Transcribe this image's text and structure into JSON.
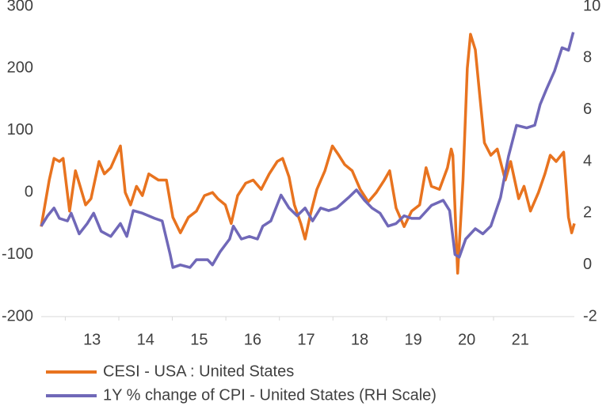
{
  "chart_data": {
    "type": "line",
    "series": [
      {
        "name": "CESI - USA : United States",
        "color": "#e8731f",
        "axis": "y",
        "x": [
          12.55,
          12.62,
          12.7,
          12.79,
          12.89,
          12.96,
          13.08,
          13.19,
          13.26,
          13.38,
          13.48,
          13.63,
          13.73,
          13.85,
          14.03,
          14.12,
          14.22,
          14.33,
          14.44,
          14.56,
          14.74,
          14.89,
          15.01,
          15.15,
          15.3,
          15.45,
          15.6,
          15.75,
          15.85,
          15.99,
          16.1,
          16.22,
          16.37,
          16.51,
          16.66,
          16.81,
          16.96,
          17.06,
          17.18,
          17.28,
          17.4,
          17.48,
          17.58,
          17.7,
          17.85,
          17.99,
          18.11,
          18.22,
          18.36,
          18.51,
          18.66,
          18.81,
          18.96,
          19.06,
          19.18,
          19.33,
          19.47,
          19.62,
          19.74,
          19.84,
          19.99,
          20.14,
          20.21,
          20.24,
          20.33,
          20.43,
          20.51,
          20.57,
          20.66,
          20.75,
          20.83,
          20.95,
          21.07,
          21.22,
          21.32,
          21.47,
          21.57,
          21.69,
          21.84,
          21.96,
          22.06,
          22.17,
          22.31,
          22.4,
          22.46,
          22.51
        ],
        "values": [
          -55,
          -20,
          20,
          55,
          50,
          55,
          -30,
          35,
          15,
          -20,
          -10,
          50,
          30,
          40,
          75,
          0,
          -20,
          10,
          -5,
          30,
          20,
          20,
          -40,
          -65,
          -40,
          -30,
          -5,
          0,
          -10,
          -20,
          -50,
          -5,
          15,
          20,
          5,
          30,
          50,
          55,
          25,
          -20,
          -50,
          -75,
          -35,
          5,
          35,
          75,
          60,
          45,
          35,
          5,
          -15,
          0,
          20,
          35,
          -25,
          -55,
          -30,
          -20,
          40,
          10,
          5,
          40,
          70,
          60,
          -130,
          20,
          200,
          255,
          230,
          150,
          80,
          60,
          70,
          20,
          50,
          -10,
          10,
          -30,
          0,
          30,
          60,
          50,
          65,
          -40,
          -65,
          -50
        ]
      },
      {
        "name": "1Y % change of CPI - United States (RH Scale)",
        "color": "#7068b8",
        "axis": "y2",
        "x": [
          12.55,
          12.67,
          12.79,
          12.89,
          13.04,
          13.11,
          13.26,
          13.41,
          13.53,
          13.67,
          13.85,
          14.03,
          14.15,
          14.27,
          14.44,
          14.67,
          14.81,
          14.96,
          15.01,
          15.15,
          15.33,
          15.45,
          15.66,
          15.75,
          15.89,
          16.07,
          16.14,
          16.29,
          16.44,
          16.59,
          16.69,
          16.84,
          17.03,
          17.18,
          17.33,
          17.48,
          17.62,
          17.77,
          17.92,
          18.07,
          18.29,
          18.44,
          18.59,
          18.73,
          18.88,
          19.03,
          19.18,
          19.33,
          19.47,
          19.62,
          19.84,
          20.06,
          20.18,
          20.28,
          20.36,
          20.48,
          20.66,
          20.8,
          20.95,
          21.13,
          21.28,
          21.43,
          21.62,
          21.77,
          21.87,
          21.99,
          22.14,
          22.28,
          22.4,
          22.49
        ],
        "values": [
          1.5,
          1.9,
          2.2,
          1.8,
          1.7,
          2.0,
          1.2,
          1.6,
          2.0,
          1.3,
          1.1,
          1.6,
          1.1,
          2.1,
          2.0,
          1.8,
          1.7,
          0.4,
          -0.1,
          0.0,
          -0.1,
          0.2,
          0.2,
          0.0,
          0.5,
          1.0,
          1.5,
          1.0,
          1.1,
          1.0,
          1.5,
          1.7,
          2.7,
          2.2,
          1.9,
          2.2,
          1.7,
          2.2,
          2.1,
          2.2,
          2.6,
          2.9,
          2.5,
          2.2,
          2.0,
          1.5,
          1.6,
          1.9,
          1.8,
          1.8,
          2.3,
          2.5,
          2.1,
          0.4,
          0.3,
          1.0,
          1.4,
          1.2,
          1.5,
          2.6,
          4.2,
          5.4,
          5.3,
          5.4,
          6.2,
          6.8,
          7.5,
          8.4,
          8.3,
          9.0
        ]
      }
    ],
    "xlim": [
      12.55,
      22.51
    ],
    "xticks": [
      13,
      14,
      15,
      16,
      17,
      18,
      19,
      20,
      21
    ],
    "ylim": [
      -200,
      300
    ],
    "yticks": [
      -200,
      -100,
      0,
      100,
      200,
      300
    ],
    "y2lim": [
      -2,
      10
    ],
    "y2ticks": [
      -2,
      0,
      2,
      4,
      6,
      8,
      10
    ],
    "legend": "bottom-left",
    "grid": false
  }
}
